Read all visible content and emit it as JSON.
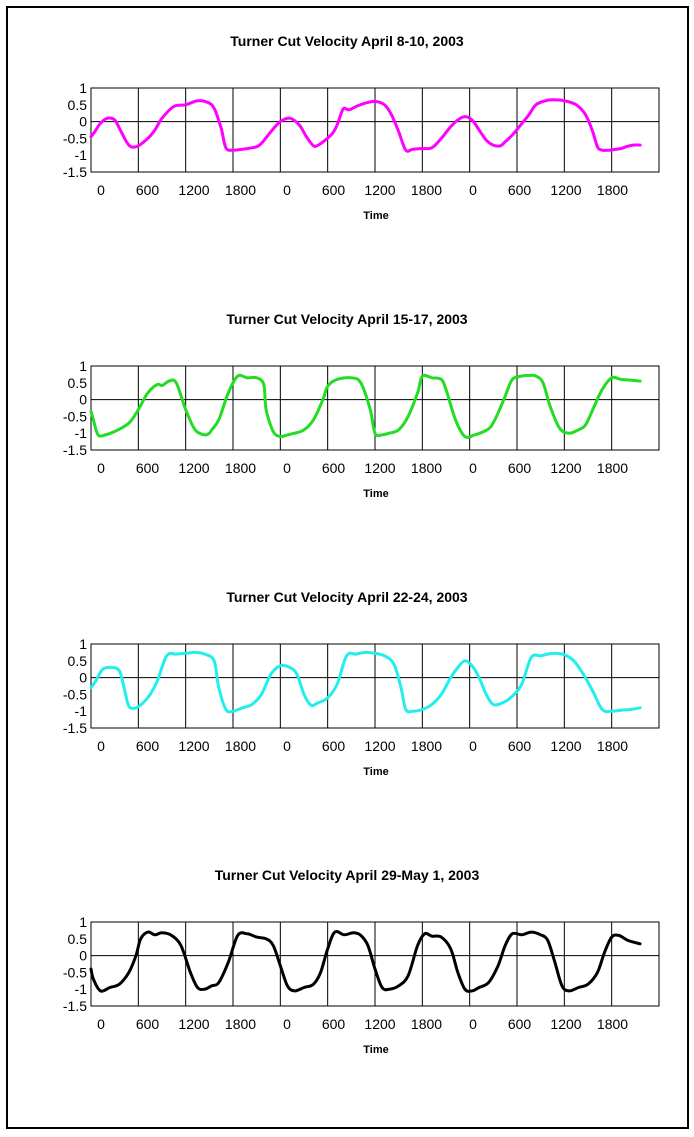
{
  "chart_data": [
    {
      "type": "line",
      "title": "Turner Cut Velocity  April 8-10, 2003",
      "xlabel": "Time",
      "ylabel": "",
      "ylim": [
        -1.5,
        1
      ],
      "yticks": [
        "1",
        "0.5",
        "0",
        "-0.5",
        "-1",
        "-1.5"
      ],
      "xticks": [
        "0",
        "600",
        "1200",
        "1800",
        "0",
        "600",
        "1200",
        "1800",
        "0",
        "600",
        "1200",
        "1800"
      ],
      "color": "#ff00ff",
      "series": [
        {
          "x": [
            0,
            0.08,
            0.2,
            0.35,
            0.5,
            0.6,
            0.75,
            0.85,
            1.0,
            1.2,
            1.35,
            1.5,
            1.75,
            2.0,
            2.25,
            2.45,
            2.6,
            2.75,
            2.85,
            3.0,
            3.2,
            3.4,
            3.5,
            3.6,
            3.8,
            4.0,
            4.2,
            4.4,
            4.55,
            4.7,
            4.8,
            4.95,
            5.1,
            5.2,
            5.3,
            5.35,
            5.45,
            5.6,
            5.8,
            6.0,
            6.2,
            6.35,
            6.5,
            6.65,
            6.8,
            7.0,
            7.2,
            7.4,
            7.6,
            7.75,
            7.9,
            8.05,
            8.2,
            8.35,
            8.5,
            8.65,
            8.75,
            8.9,
            9.05,
            9.25,
            9.4,
            9.6,
            9.75,
            10.0,
            10.25,
            10.45,
            10.6,
            10.7,
            10.8,
            10.95,
            11.1,
            11.2,
            11.3,
            11.45,
            11.6
          ],
          "y": [
            -0.45,
            -0.3,
            -0.05,
            0.1,
            0.05,
            -0.2,
            -0.6,
            -0.75,
            -0.72,
            -0.5,
            -0.25,
            0.1,
            0.45,
            0.5,
            0.62,
            0.58,
            0.4,
            -0.2,
            -0.78,
            -0.85,
            -0.82,
            -0.78,
            -0.75,
            -0.65,
            -0.3,
            0.0,
            0.1,
            -0.1,
            -0.45,
            -0.72,
            -0.7,
            -0.55,
            -0.35,
            -0.1,
            0.3,
            0.4,
            0.35,
            0.45,
            0.55,
            0.6,
            0.5,
            0.2,
            -0.3,
            -0.85,
            -0.82,
            -0.8,
            -0.78,
            -0.5,
            -0.15,
            0.05,
            0.15,
            0.05,
            -0.25,
            -0.55,
            -0.7,
            -0.72,
            -0.6,
            -0.4,
            -0.15,
            0.2,
            0.5,
            0.62,
            0.65,
            0.62,
            0.5,
            0.2,
            -0.3,
            -0.75,
            -0.85,
            -0.85,
            -0.82,
            -0.8,
            -0.75,
            -0.7,
            -0.7
          ]
        }
      ]
    },
    {
      "type": "line",
      "title": "Turner Cut Velocity  April 15-17, 2003",
      "xlabel": "Time",
      "ylabel": "",
      "ylim": [
        -1.5,
        1
      ],
      "yticks": [
        "1",
        "0.5",
        "0",
        "-0.5",
        "-1",
        "-1.5"
      ],
      "xticks": [
        "0",
        "600",
        "1200",
        "1800",
        "0",
        "600",
        "1200",
        "1800",
        "0",
        "600",
        "1200",
        "1800"
      ],
      "color": "#22dd22",
      "series": [
        {
          "x": [
            0,
            0.05,
            0.15,
            0.3,
            0.5,
            0.8,
            1.0,
            1.2,
            1.4,
            1.5,
            1.65,
            1.8,
            2.0,
            2.2,
            2.4,
            2.5,
            2.55,
            2.7,
            2.9,
            3.1,
            3.3,
            3.5,
            3.65,
            3.7,
            3.85,
            4.0,
            4.15,
            4.3,
            4.5,
            4.7,
            4.9,
            5.0,
            5.2,
            5.5,
            5.7,
            5.9,
            6.0,
            6.15,
            6.3,
            6.5,
            6.7,
            6.9,
            7.0,
            7.2,
            7.4,
            7.5,
            7.7,
            7.9,
            8.1,
            8.3,
            8.45,
            8.6,
            8.75,
            8.9,
            9.1,
            9.25,
            9.4,
            9.55,
            9.7,
            9.9,
            10.1,
            10.3,
            10.45,
            10.6,
            10.8,
            11.0,
            11.2,
            11.4,
            11.6
          ],
          "y": [
            -0.35,
            -0.6,
            -1.05,
            -1.05,
            -0.95,
            -0.7,
            -0.3,
            0.2,
            0.45,
            0.42,
            0.55,
            0.5,
            -0.3,
            -0.9,
            -1.05,
            -1.0,
            -0.9,
            -0.6,
            0.2,
            0.7,
            0.65,
            0.65,
            0.45,
            -0.3,
            -0.95,
            -1.1,
            -1.05,
            -1.0,
            -0.9,
            -0.6,
            0.0,
            0.4,
            0.6,
            0.65,
            0.5,
            -0.3,
            -1.0,
            -1.05,
            -1.0,
            -0.9,
            -0.5,
            0.2,
            0.7,
            0.65,
            0.6,
            0.3,
            -0.6,
            -1.1,
            -1.05,
            -0.95,
            -0.8,
            -0.4,
            0.1,
            0.6,
            0.7,
            0.72,
            0.7,
            0.5,
            -0.2,
            -0.85,
            -1.0,
            -0.9,
            -0.75,
            -0.3,
            0.3,
            0.65,
            0.6,
            0.58,
            0.55
          ]
        }
      ]
    },
    {
      "type": "line",
      "title": "Turner Cut Velocity  April 22-24, 2003",
      "xlabel": "Time",
      "ylabel": "",
      "ylim": [
        -1.5,
        1
      ],
      "yticks": [
        "1",
        "0.5",
        "0",
        "-0.5",
        "-1",
        "-1.5"
      ],
      "xticks": [
        "0",
        "600",
        "1200",
        "1800",
        "0",
        "600",
        "1200",
        "1800",
        "0",
        "600",
        "1200",
        "1800"
      ],
      "color": "#22eeee",
      "series": [
        {
          "x": [
            0,
            0.1,
            0.25,
            0.45,
            0.6,
            0.7,
            0.8,
            0.95,
            1.1,
            1.25,
            1.4,
            1.6,
            1.8,
            2.0,
            2.2,
            2.4,
            2.6,
            2.7,
            2.85,
            3.0,
            3.2,
            3.4,
            3.6,
            3.8,
            4.0,
            4.2,
            4.35,
            4.5,
            4.65,
            4.8,
            5.0,
            5.2,
            5.4,
            5.6,
            5.8,
            6.0,
            6.2,
            6.4,
            6.55,
            6.65,
            6.8,
            7.0,
            7.2,
            7.4,
            7.6,
            7.75,
            7.9,
            8.05,
            8.2,
            8.35,
            8.5,
            8.7,
            8.9,
            9.1,
            9.3,
            9.5,
            9.65,
            9.8,
            10.0,
            10.2,
            10.4,
            10.6,
            10.8,
            11.0,
            11.2,
            11.4,
            11.6
          ],
          "y": [
            -0.3,
            -0.1,
            0.25,
            0.3,
            0.2,
            -0.3,
            -0.85,
            -0.9,
            -0.75,
            -0.5,
            -0.1,
            0.65,
            0.7,
            0.72,
            0.75,
            0.7,
            0.5,
            -0.3,
            -0.95,
            -1.0,
            -0.9,
            -0.8,
            -0.5,
            0.1,
            0.35,
            0.3,
            0.1,
            -0.5,
            -0.82,
            -0.75,
            -0.6,
            -0.2,
            0.65,
            0.7,
            0.75,
            0.72,
            0.65,
            0.4,
            -0.3,
            -0.95,
            -1.0,
            -0.95,
            -0.8,
            -0.5,
            0.0,
            0.3,
            0.5,
            0.35,
            0.0,
            -0.5,
            -0.8,
            -0.75,
            -0.55,
            -0.2,
            0.6,
            0.65,
            0.7,
            0.72,
            0.68,
            0.5,
            0.1,
            -0.4,
            -0.95,
            -1.0,
            -0.97,
            -0.95,
            -0.9
          ]
        }
      ]
    },
    {
      "type": "line",
      "title": "Turner Cut Velocity  April 29-May 1, 2003",
      "xlabel": "Time",
      "ylabel": "",
      "ylim": [
        -1.5,
        1
      ],
      "yticks": [
        "1",
        "0.5",
        "0",
        "-0.5",
        "-1",
        "-1.5"
      ],
      "xticks": [
        "0",
        "600",
        "1200",
        "1800",
        "0",
        "600",
        "1200",
        "1800",
        "0",
        "600",
        "1200",
        "1800"
      ],
      "color": "#000000",
      "series": [
        {
          "x": [
            0,
            0.05,
            0.2,
            0.4,
            0.6,
            0.8,
            0.95,
            1.05,
            1.2,
            1.35,
            1.5,
            1.7,
            1.9,
            2.1,
            2.25,
            2.4,
            2.55,
            2.7,
            2.9,
            3.1,
            3.3,
            3.5,
            3.7,
            3.85,
            4.0,
            4.15,
            4.3,
            4.5,
            4.7,
            4.85,
            5.0,
            5.15,
            5.35,
            5.55,
            5.7,
            5.85,
            6.0,
            6.15,
            6.3,
            6.5,
            6.7,
            6.9,
            7.05,
            7.2,
            7.4,
            7.6,
            7.75,
            7.9,
            8.05,
            8.2,
            8.4,
            8.6,
            8.75,
            8.9,
            9.1,
            9.3,
            9.5,
            9.65,
            9.8,
            9.95,
            10.1,
            10.3,
            10.5,
            10.7,
            10.85,
            11.0,
            11.15,
            11.35,
            11.6
          ],
          "y": [
            -0.4,
            -0.7,
            -1.05,
            -0.95,
            -0.85,
            -0.5,
            0.0,
            0.5,
            0.7,
            0.62,
            0.68,
            0.6,
            0.3,
            -0.5,
            -0.95,
            -1.0,
            -0.9,
            -0.8,
            -0.2,
            0.6,
            0.65,
            0.55,
            0.5,
            0.3,
            -0.3,
            -0.9,
            -1.05,
            -0.95,
            -0.85,
            -0.5,
            0.2,
            0.7,
            0.62,
            0.68,
            0.6,
            0.3,
            -0.4,
            -0.95,
            -1.0,
            -0.9,
            -0.6,
            0.3,
            0.65,
            0.58,
            0.55,
            0.2,
            -0.5,
            -1.0,
            -1.05,
            -0.95,
            -0.8,
            -0.3,
            0.3,
            0.65,
            0.62,
            0.7,
            0.62,
            0.45,
            -0.2,
            -0.9,
            -1.05,
            -0.95,
            -0.85,
            -0.5,
            0.1,
            0.55,
            0.6,
            0.45,
            0.35
          ]
        }
      ]
    }
  ]
}
